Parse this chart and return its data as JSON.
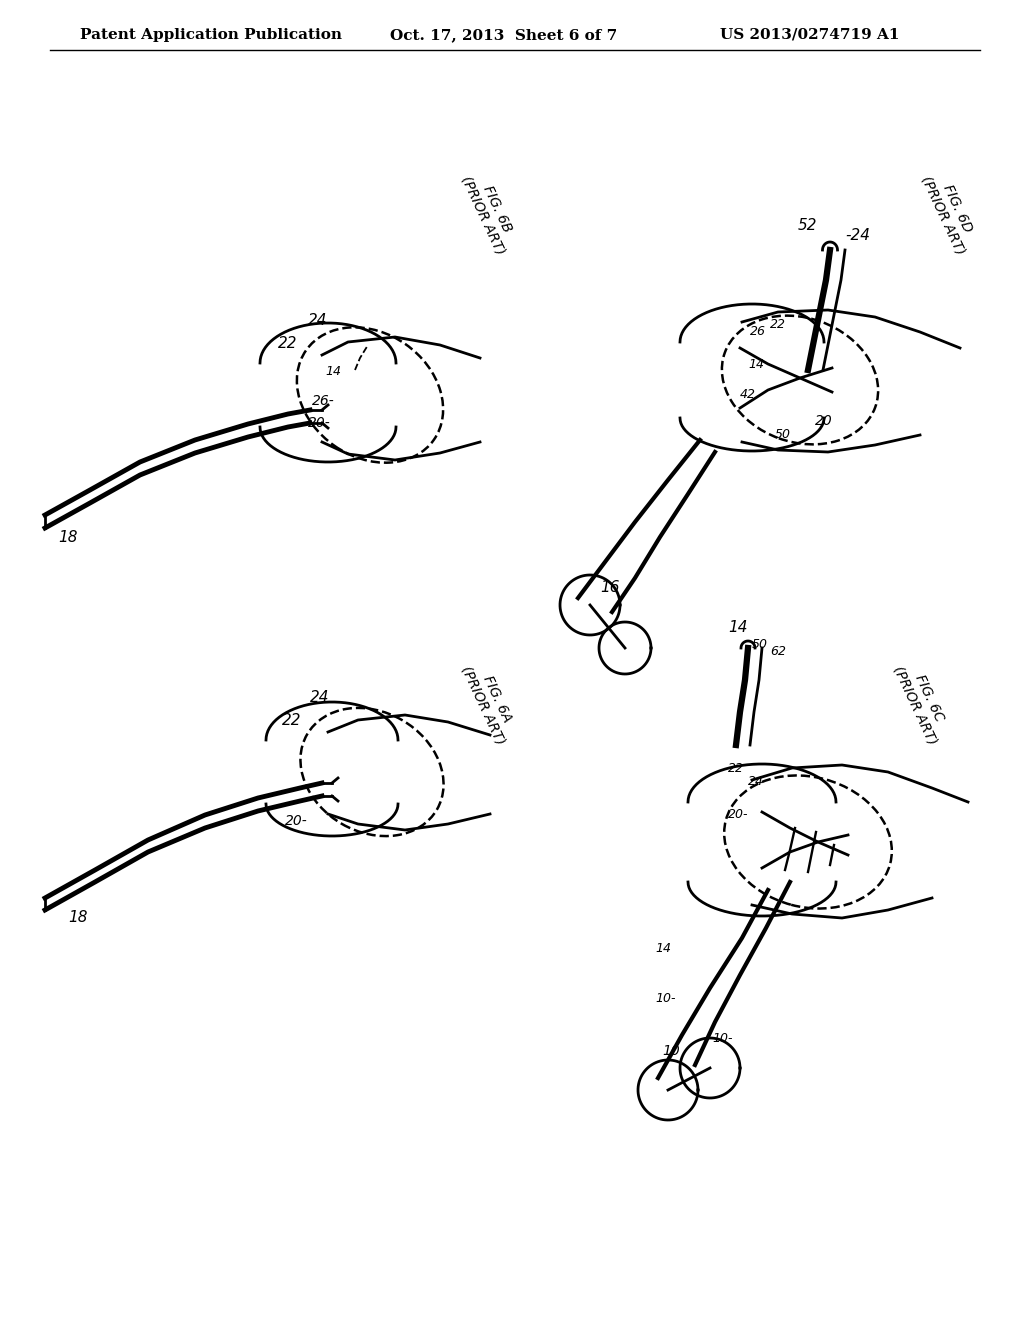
{
  "background_color": "#ffffff",
  "header_left": "Patent Application Publication",
  "header_center": "Oct. 17, 2013  Sheet 6 of 7",
  "header_right": "US 2013/0274719 A1",
  "fig_6b_label": "FIG. 6B\n(PRIOR ART)",
  "fig_6d_label": "FIG. 6D\n(PRIOR ART)",
  "fig_6a_label": "FIG. 6A\n(PRIOR ART)",
  "fig_6c_label": "FIG. 6C\n(PRIOR ART)"
}
